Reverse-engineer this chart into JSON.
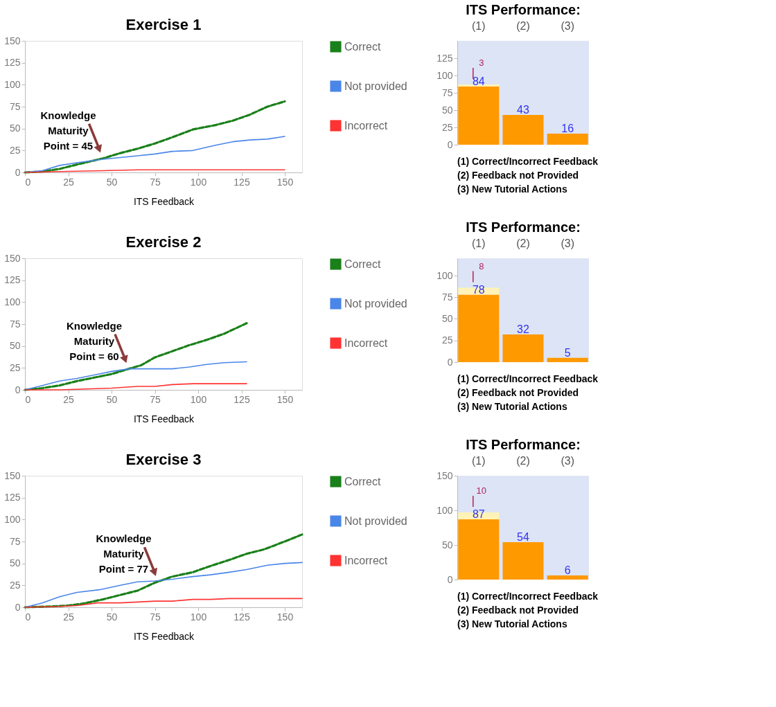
{
  "chart_data": [
    {
      "type": "line",
      "title": "Exercise 1",
      "xlabel": "ITS Feedback",
      "xlim": [
        0,
        160
      ],
      "xticks": [
        0,
        25,
        50,
        75,
        100,
        125,
        150
      ],
      "ylim": [
        0,
        150
      ],
      "yticks": [
        0,
        25,
        50,
        75,
        100,
        125,
        150
      ],
      "legend": "right",
      "series": [
        {
          "name": "Correct",
          "color": "#1a801a",
          "line_style": "dashed",
          "x": [
            0,
            10,
            20,
            30,
            45,
            55,
            65,
            75,
            85,
            97,
            110,
            120,
            130,
            140,
            150
          ],
          "values": [
            0,
            1,
            4,
            9,
            16,
            22,
            27,
            33,
            40,
            49,
            54,
            59,
            66,
            75,
            81
          ]
        },
        {
          "name": "Not provided",
          "color": "#4a86e8",
          "line_style": "solid",
          "x": [
            0,
            10,
            20,
            30,
            45,
            55,
            65,
            75,
            85,
            97,
            110,
            120,
            130,
            140,
            150
          ],
          "values": [
            0,
            2,
            8,
            11,
            15,
            17,
            19,
            21,
            24,
            25,
            31,
            35,
            37,
            38,
            41
          ]
        },
        {
          "name": "Incorrect",
          "color": "#ff3333",
          "line_style": "solid",
          "x": [
            0,
            20,
            45,
            65,
            150
          ],
          "values": [
            0,
            1,
            2,
            3,
            3
          ]
        }
      ],
      "annotations": [
        {
          "text": "Knowledge\nMaturity\nPoint = 45",
          "x": 45,
          "y": 16
        }
      ]
    },
    {
      "type": "bar",
      "title": "ITS Performance:",
      "categories": [
        "(1)",
        "(2)",
        "(3)"
      ],
      "stacked": true,
      "ylim": [
        0,
        150
      ],
      "yticks": [
        0,
        25,
        50,
        75,
        100,
        125
      ],
      "data_labels": true,
      "series": [
        {
          "color": "#ff9900",
          "values": [
            84,
            43,
            16
          ]
        },
        {
          "color": "#fff3b8",
          "values": [
            3,
            null,
            null
          ]
        }
      ],
      "annotations": [
        "(1)   Correct/Incorrect Feedback",
        "(2)   Feedback not Provided",
        "(3)   New Tutorial Actions"
      ]
    },
    {
      "type": "line",
      "title": "Exercise 2",
      "xlabel": "ITS Feedback",
      "xlim": [
        0,
        160
      ],
      "xticks": [
        0,
        25,
        50,
        75,
        100,
        125,
        150
      ],
      "ylim": [
        0,
        150
      ],
      "yticks": [
        0,
        25,
        50,
        75,
        100,
        125,
        150
      ],
      "legend": "right",
      "series": [
        {
          "name": "Correct",
          "color": "#1a801a",
          "line_style": "dashed",
          "x": [
            0,
            10,
            20,
            30,
            40,
            50,
            60,
            67,
            75,
            85,
            95,
            105,
            115,
            128
          ],
          "values": [
            0,
            2,
            5,
            10,
            14,
            18,
            24,
            28,
            37,
            44,
            51,
            57,
            64,
            76
          ]
        },
        {
          "name": "Not provided",
          "color": "#4a86e8",
          "line_style": "solid",
          "x": [
            0,
            10,
            20,
            30,
            40,
            50,
            60,
            70,
            85,
            95,
            105,
            115,
            128
          ],
          "values": [
            0,
            5,
            10,
            13,
            17,
            21,
            24,
            24,
            24,
            26,
            29,
            31,
            32
          ]
        },
        {
          "name": "Incorrect",
          "color": "#ff3333",
          "line_style": "solid",
          "x": [
            0,
            20,
            35,
            50,
            65,
            75,
            85,
            97,
            128
          ],
          "values": [
            0,
            0,
            1,
            2,
            4,
            4,
            6,
            7,
            7
          ]
        }
      ],
      "annotations": [
        {
          "text": "Knowledge\nMaturity\nPoint = 60",
          "x": 60,
          "y": 24
        }
      ]
    },
    {
      "type": "bar",
      "title": "ITS Performance:",
      "categories": [
        "(1)",
        "(2)",
        "(3)"
      ],
      "stacked": true,
      "ylim": [
        0,
        120
      ],
      "yticks": [
        0,
        25,
        50,
        75,
        100
      ],
      "data_labels": true,
      "series": [
        {
          "color": "#ff9900",
          "values": [
            78,
            32,
            5
          ]
        },
        {
          "color": "#fff3b8",
          "values": [
            8,
            null,
            null
          ]
        }
      ],
      "annotations": [
        "(1)   Correct/Incorrect Feedback",
        "(2)   Feedback not Provided",
        "(3)   New Tutorial Actions"
      ]
    },
    {
      "type": "line",
      "title": "Exercise 3",
      "xlabel": "ITS Feedback",
      "xlim": [
        0,
        160
      ],
      "xticks": [
        0,
        25,
        50,
        75,
        100,
        125,
        150
      ],
      "ylim": [
        0,
        150
      ],
      "yticks": [
        0,
        25,
        50,
        75,
        100,
        125,
        150
      ],
      "legend": "right",
      "series": [
        {
          "name": "Correct",
          "color": "#1a801a",
          "line_style": "dashed",
          "x": [
            0,
            15,
            25,
            33,
            45,
            55,
            65,
            75,
            85,
            97,
            107,
            118,
            128,
            138,
            150,
            160
          ],
          "values": [
            0,
            1,
            2,
            4,
            9,
            14,
            19,
            28,
            35,
            40,
            47,
            54,
            61,
            66,
            75,
            83
          ]
        },
        {
          "name": "Not provided",
          "color": "#4a86e8",
          "line_style": "solid",
          "x": [
            0,
            10,
            20,
            30,
            43,
            55,
            65,
            75,
            85,
            97,
            107,
            118,
            128,
            140,
            150,
            160
          ],
          "values": [
            0,
            5,
            12,
            17,
            20,
            25,
            29,
            30,
            32,
            35,
            37,
            40,
            43,
            48,
            50,
            51
          ]
        },
        {
          "name": "Incorrect",
          "color": "#ff3333",
          "line_style": "solid",
          "x": [
            0,
            20,
            30,
            42,
            55,
            75,
            85,
            97,
            107,
            118,
            160
          ],
          "values": [
            0,
            1,
            2,
            5,
            5,
            7,
            7,
            9,
            9,
            10,
            10
          ]
        }
      ],
      "annotations": [
        {
          "text": "Knowledge\nMaturity\nPoint = 77",
          "x": 77,
          "y": 29
        }
      ]
    },
    {
      "type": "bar",
      "title": "ITS Performance:",
      "categories": [
        "(1)",
        "(2)",
        "(3)"
      ],
      "stacked": true,
      "ylim": [
        0,
        150
      ],
      "yticks": [
        0,
        50,
        100,
        150
      ],
      "data_labels": true,
      "series": [
        {
          "color": "#ff9900",
          "values": [
            87,
            54,
            6
          ]
        },
        {
          "color": "#fff3b8",
          "values": [
            10,
            null,
            null
          ]
        }
      ],
      "annotations": [
        "(1)   Correct/Incorrect Feedback",
        "(2)   Feedback not Provided",
        "(3)   New Tutorial Actions"
      ]
    }
  ]
}
